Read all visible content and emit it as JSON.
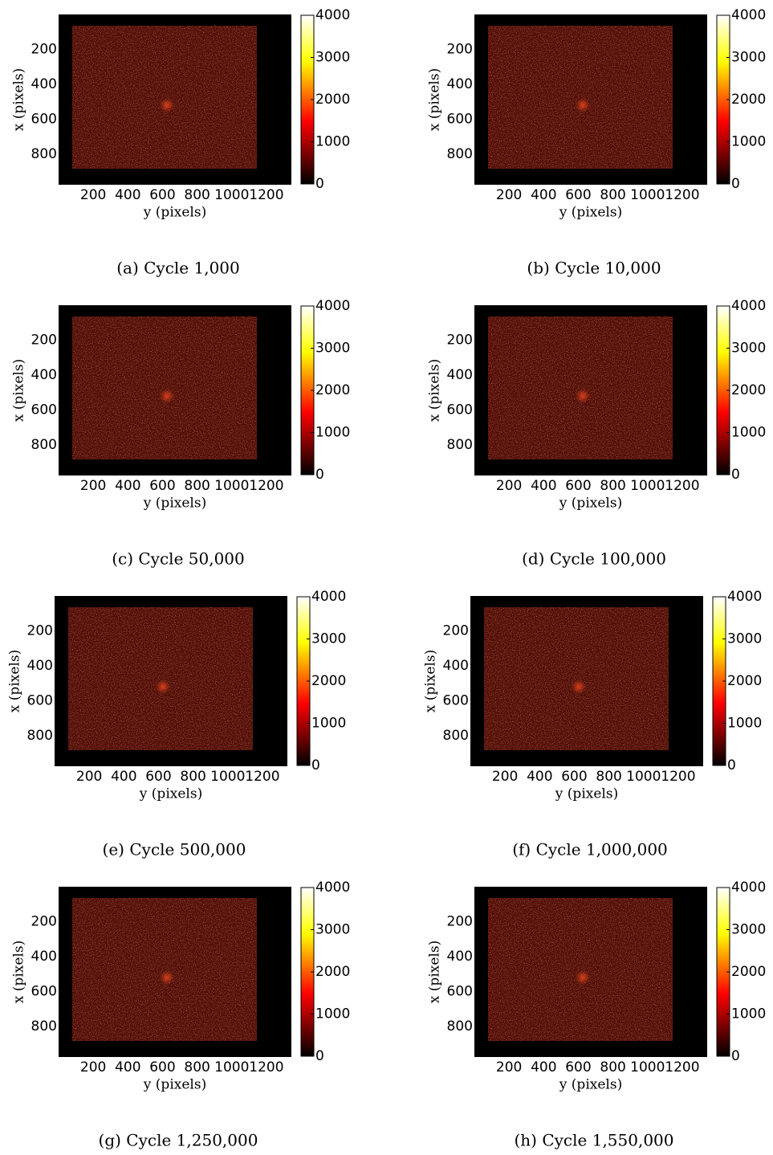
{
  "chart_data": [
    {
      "type": "heatmap",
      "caption": "(a)  Cycle 1,000",
      "xlabel": "y (pixels)",
      "ylabel": "x (pixels)",
      "xlim": [
        0,
        1344
      ],
      "ylim": [
        974,
        0
      ],
      "xticks": [
        200,
        400,
        600,
        800,
        1000,
        1200
      ],
      "yticks": [
        200,
        400,
        600,
        800
      ],
      "clim": [
        0,
        4000
      ],
      "cticks": [
        0,
        1000,
        2000,
        3000,
        4000
      ]
    },
    {
      "type": "heatmap",
      "caption": "(b)  Cycle 10,000",
      "xlabel": "y (pixels)",
      "ylabel": "x (pixels)",
      "xlim": [
        0,
        1344
      ],
      "ylim": [
        974,
        0
      ],
      "xticks": [
        200,
        400,
        600,
        800,
        1000,
        1200
      ],
      "yticks": [
        200,
        400,
        600,
        800
      ],
      "clim": [
        0,
        4000
      ],
      "cticks": [
        0,
        1000,
        2000,
        3000,
        4000
      ]
    },
    {
      "type": "heatmap",
      "caption": "(c)  Cycle 50,000",
      "xlabel": "y (pixels)",
      "ylabel": "x (pixels)",
      "xlim": [
        0,
        1344
      ],
      "ylim": [
        974,
        0
      ],
      "xticks": [
        200,
        400,
        600,
        800,
        1000,
        1200
      ],
      "yticks": [
        200,
        400,
        600,
        800
      ],
      "clim": [
        0,
        4000
      ],
      "cticks": [
        0,
        1000,
        2000,
        3000,
        4000
      ]
    },
    {
      "type": "heatmap",
      "caption": "(d)  Cycle 100,000",
      "xlabel": "y (pixels)",
      "ylabel": "x (pixels)",
      "xlim": [
        0,
        1344
      ],
      "ylim": [
        974,
        0
      ],
      "xticks": [
        200,
        400,
        600,
        800,
        1000,
        1200
      ],
      "yticks": [
        200,
        400,
        600,
        800
      ],
      "clim": [
        0,
        4000
      ],
      "cticks": [
        0,
        1000,
        2000,
        3000,
        4000
      ]
    },
    {
      "type": "heatmap",
      "caption": "(e)  Cycle 500,000",
      "xlabel": "y (pixels)",
      "ylabel": "x (pixels)",
      "xlim": [
        0,
        1344
      ],
      "ylim": [
        974,
        0
      ],
      "xticks": [
        200,
        400,
        600,
        800,
        1000,
        1200
      ],
      "yticks": [
        200,
        400,
        600,
        800
      ],
      "clim": [
        0,
        4000
      ],
      "cticks": [
        0,
        1000,
        2000,
        3000,
        4000
      ]
    },
    {
      "type": "heatmap",
      "caption": "(f)  Cycle 1,000,000",
      "xlabel": "y (pixels)",
      "ylabel": "x (pixels)",
      "xlim": [
        0,
        1344
      ],
      "ylim": [
        974,
        0
      ],
      "xticks": [
        200,
        400,
        600,
        800,
        1000,
        1200
      ],
      "yticks": [
        200,
        400,
        600,
        800
      ],
      "clim": [
        0,
        4000
      ],
      "cticks": [
        0,
        1000,
        2000,
        3000,
        4000
      ]
    },
    {
      "type": "heatmap",
      "caption": "(g)  Cycle 1,250,000",
      "xlabel": "y (pixels)",
      "ylabel": "x (pixels)",
      "xlim": [
        0,
        1344
      ],
      "ylim": [
        974,
        0
      ],
      "xticks": [
        200,
        400,
        600,
        800,
        1000,
        1200
      ],
      "yticks": [
        200,
        400,
        600,
        800
      ],
      "clim": [
        0,
        4000
      ],
      "cticks": [
        0,
        1000,
        2000,
        3000,
        4000
      ]
    },
    {
      "type": "heatmap",
      "caption": "(h)  Cycle 1,550,000",
      "xlabel": "y (pixels)",
      "ylabel": "x (pixels)",
      "xlim": [
        0,
        1344
      ],
      "ylim": [
        974,
        0
      ],
      "xticks": [
        200,
        400,
        600,
        800,
        1000,
        1200
      ],
      "yticks": [
        200,
        400,
        600,
        800
      ],
      "clim": [
        0,
        4000
      ],
      "cticks": [
        0,
        1000,
        2000,
        3000,
        4000
      ]
    }
  ]
}
